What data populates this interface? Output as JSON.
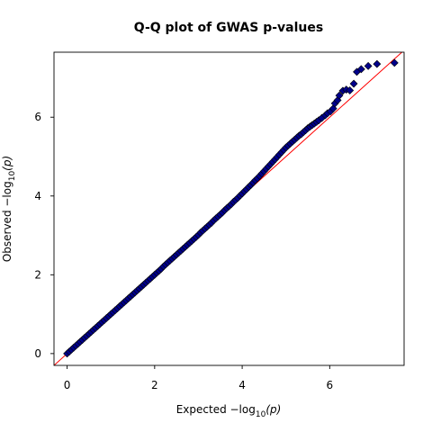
{
  "chart_data": {
    "type": "scatter",
    "title": "Q-Q plot of GWAS p-values",
    "xlabel": {
      "prefix": "Expected  −log",
      "sub": "10",
      "suffix": "(p)"
    },
    "ylabel": {
      "prefix": "Observed  −log",
      "sub": "10",
      "suffix": "(p)"
    },
    "xlim": [
      -0.3,
      7.7
    ],
    "ylim": [
      -0.3,
      7.65
    ],
    "xticks": [
      0,
      2,
      4,
      6
    ],
    "yticks": [
      0,
      2,
      4,
      6
    ],
    "xtick_labels": [
      "0",
      "2",
      "4",
      "6"
    ],
    "ytick_labels": [
      "0",
      "2",
      "4",
      "6"
    ],
    "grid": false,
    "reference_line": {
      "slope": 1,
      "intercept": 0,
      "color": "#ff0000"
    },
    "marker": {
      "shape": "diamond",
      "fill": "#00008b",
      "stroke": "#000000"
    },
    "points": [
      [
        0.0,
        0.0
      ],
      [
        0.05,
        0.05
      ],
      [
        0.1,
        0.1
      ],
      [
        0.15,
        0.15
      ],
      [
        0.2,
        0.2
      ],
      [
        0.25,
        0.25
      ],
      [
        0.3,
        0.3
      ],
      [
        0.35,
        0.35
      ],
      [
        0.4,
        0.4
      ],
      [
        0.45,
        0.45
      ],
      [
        0.5,
        0.5
      ],
      [
        0.55,
        0.55
      ],
      [
        0.6,
        0.6
      ],
      [
        0.65,
        0.65
      ],
      [
        0.7,
        0.7
      ],
      [
        0.75,
        0.75
      ],
      [
        0.8,
        0.8
      ],
      [
        0.85,
        0.85
      ],
      [
        0.9,
        0.9
      ],
      [
        0.95,
        0.95
      ],
      [
        1.0,
        1.0
      ],
      [
        1.05,
        1.05
      ],
      [
        1.1,
        1.1
      ],
      [
        1.15,
        1.15
      ],
      [
        1.2,
        1.2
      ],
      [
        1.25,
        1.25
      ],
      [
        1.3,
        1.3
      ],
      [
        1.35,
        1.35
      ],
      [
        1.4,
        1.4
      ],
      [
        1.45,
        1.45
      ],
      [
        1.5,
        1.5
      ],
      [
        1.55,
        1.55
      ],
      [
        1.6,
        1.6
      ],
      [
        1.65,
        1.65
      ],
      [
        1.7,
        1.7
      ],
      [
        1.75,
        1.75
      ],
      [
        1.8,
        1.8
      ],
      [
        1.85,
        1.85
      ],
      [
        1.9,
        1.9
      ],
      [
        1.95,
        1.95
      ],
      [
        2.0,
        2.0
      ],
      [
        2.05,
        2.05
      ],
      [
        2.1,
        2.1
      ],
      [
        2.15,
        2.15
      ],
      [
        2.2,
        2.21
      ],
      [
        2.25,
        2.26
      ],
      [
        2.3,
        2.31
      ],
      [
        2.35,
        2.36
      ],
      [
        2.4,
        2.41
      ],
      [
        2.45,
        2.46
      ],
      [
        2.5,
        2.51
      ],
      [
        2.55,
        2.56
      ],
      [
        2.6,
        2.61
      ],
      [
        2.65,
        2.66
      ],
      [
        2.7,
        2.71
      ],
      [
        2.75,
        2.76
      ],
      [
        2.8,
        2.81
      ],
      [
        2.85,
        2.86
      ],
      [
        2.9,
        2.91
      ],
      [
        2.95,
        2.96
      ],
      [
        3.0,
        3.01
      ],
      [
        3.05,
        3.07
      ],
      [
        3.1,
        3.12
      ],
      [
        3.15,
        3.17
      ],
      [
        3.2,
        3.22
      ],
      [
        3.25,
        3.27
      ],
      [
        3.3,
        3.32
      ],
      [
        3.35,
        3.38
      ],
      [
        3.4,
        3.43
      ],
      [
        3.45,
        3.48
      ],
      [
        3.5,
        3.53
      ],
      [
        3.55,
        3.58
      ],
      [
        3.6,
        3.64
      ],
      [
        3.65,
        3.69
      ],
      [
        3.7,
        3.74
      ],
      [
        3.75,
        3.79
      ],
      [
        3.8,
        3.85
      ],
      [
        3.85,
        3.9
      ],
      [
        3.9,
        3.95
      ],
      [
        3.95,
        4.01
      ],
      [
        4.0,
        4.06
      ],
      [
        4.05,
        4.12
      ],
      [
        4.1,
        4.17
      ],
      [
        4.15,
        4.23
      ],
      [
        4.2,
        4.28
      ],
      [
        4.25,
        4.34
      ],
      [
        4.3,
        4.4
      ],
      [
        4.35,
        4.45
      ],
      [
        4.4,
        4.51
      ],
      [
        4.45,
        4.57
      ],
      [
        4.5,
        4.63
      ],
      [
        4.55,
        4.69
      ],
      [
        4.6,
        4.75
      ],
      [
        4.65,
        4.81
      ],
      [
        4.7,
        4.87
      ],
      [
        4.75,
        4.93
      ],
      [
        4.8,
        4.99
      ],
      [
        4.85,
        5.05
      ],
      [
        4.9,
        5.11
      ],
      [
        4.95,
        5.17
      ],
      [
        5.0,
        5.23
      ],
      [
        5.05,
        5.28
      ],
      [
        5.1,
        5.33
      ],
      [
        5.15,
        5.38
      ],
      [
        5.2,
        5.43
      ],
      [
        5.25,
        5.48
      ],
      [
        5.3,
        5.53
      ],
      [
        5.35,
        5.57
      ],
      [
        5.4,
        5.62
      ],
      [
        5.45,
        5.67
      ],
      [
        5.5,
        5.72
      ],
      [
        5.55,
        5.76
      ],
      [
        5.6,
        5.8
      ],
      [
        5.65,
        5.84
      ],
      [
        5.7,
        5.88
      ],
      [
        5.75,
        5.92
      ],
      [
        5.82,
        5.98
      ],
      [
        5.9,
        6.05
      ],
      [
        5.95,
        6.1
      ],
      [
        6.02,
        6.15
      ],
      [
        6.08,
        6.22
      ],
      [
        6.12,
        6.35
      ],
      [
        6.18,
        6.43
      ],
      [
        6.22,
        6.55
      ],
      [
        6.3,
        6.67
      ],
      [
        6.38,
        6.7
      ],
      [
        6.46,
        6.68
      ],
      [
        6.55,
        6.85
      ],
      [
        6.62,
        7.15
      ],
      [
        6.72,
        7.22
      ],
      [
        6.88,
        7.3
      ],
      [
        7.08,
        7.35
      ],
      [
        7.48,
        7.38
      ]
    ]
  }
}
